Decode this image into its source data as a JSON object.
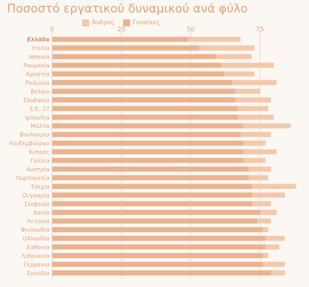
{
  "chart_data": {
    "type": "bar",
    "title": "Ποσοστό εργατικού δυναμικού ανά φύλο",
    "xlim": [
      0,
      100
    ],
    "xticks": [
      0,
      25,
      50,
      75
    ],
    "grid": true,
    "legend_position": "top",
    "categories": [
      "Ελλάδα",
      "Ιταλία",
      "Ισπανία",
      "Ρουμανία",
      "Κροατία",
      "Πολωνία",
      "Βέλγιο",
      "Σλοβακία",
      "Ε.Ε.-27",
      "Ιρλανδία",
      "Μάλτα",
      "Βουλγαρία",
      "Λουξεμβούργο",
      "Κύπρος",
      "Γαλλία",
      "Αυστρία",
      "Πορτογαλία",
      "Τσεχία",
      "Ουγγαρία",
      "Σλοβενία",
      "Δανία",
      "Λετονία",
      "Φινλανδία",
      "Ολλανδία",
      "Εσθονία",
      "Λιθουανία",
      "Γερμανία",
      "Σουηδία"
    ],
    "series": [
      {
        "name": "Άνδρες",
        "color": "#f3c8ab",
        "values": [
          68,
          73,
          72,
          80,
          73,
          81,
          75,
          79,
          78,
          80,
          86,
          79,
          77,
          81,
          77,
          79,
          78,
          88,
          84,
          79,
          81,
          79,
          78,
          84,
          82,
          78,
          84,
          84
        ]
      },
      {
        "name": "Γυναίκες",
        "color": "#e9b48f",
        "values": [
          49,
          53,
          59,
          61,
          62,
          65,
          66,
          66,
          67,
          67,
          69,
          68,
          69,
          69,
          69,
          71,
          71,
          72,
          72,
          72,
          75,
          74,
          76,
          77,
          77,
          76,
          76,
          79
        ]
      }
    ]
  }
}
